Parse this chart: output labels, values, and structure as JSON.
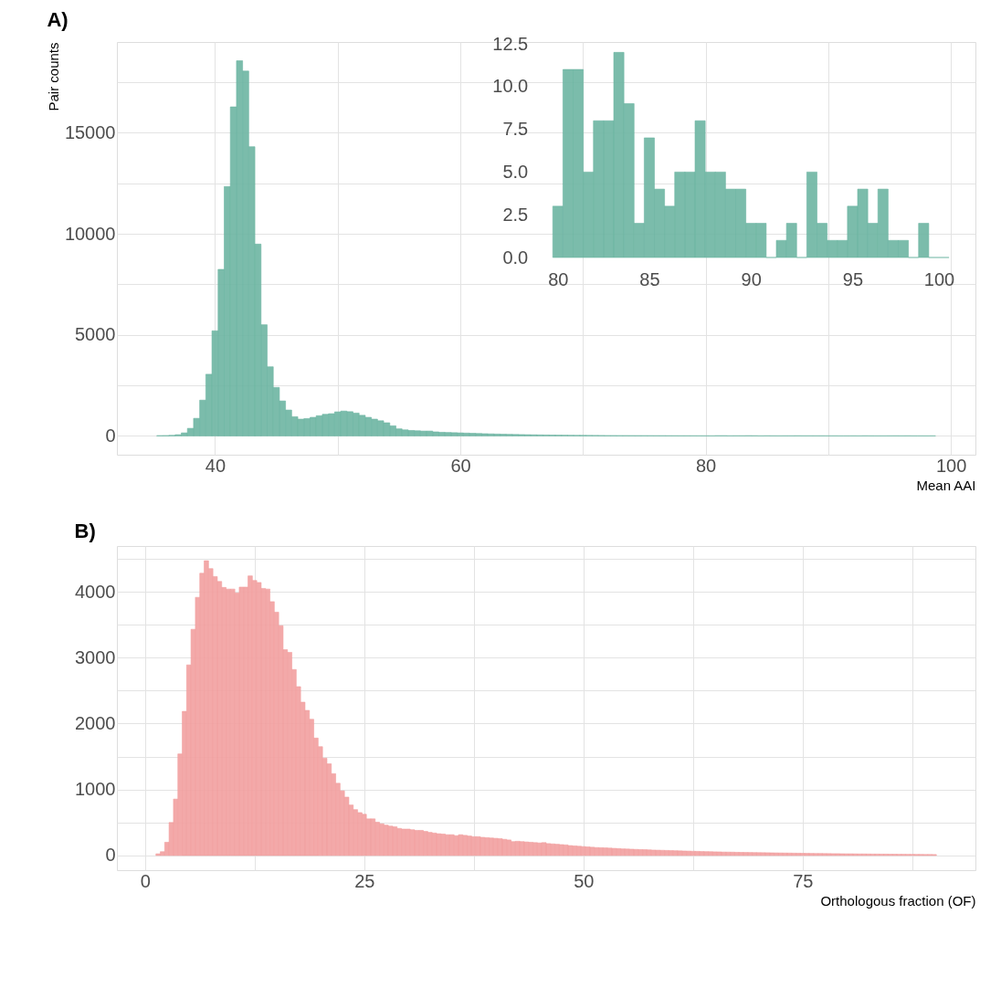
{
  "chart_data": [
    {
      "type": "histogram",
      "title": "A)",
      "xlabel": "Mean AAI",
      "ylabel": "Pair counts",
      "color": "#6db5a2",
      "grid": true,
      "xlim": [
        32,
        102
      ],
      "ylim": [
        -930,
        19490
      ],
      "xticks": [
        40,
        {
          "value": 50,
          "label": null
        },
        60,
        {
          "value": 70,
          "label": null
        },
        80,
        {
          "value": 90,
          "label": null
        },
        100
      ],
      "yticks": [
        0,
        {
          "value": 2500,
          "label": null
        },
        5000,
        {
          "value": 7500,
          "label": null
        },
        10000,
        {
          "value": 12500,
          "label": null
        },
        15000,
        {
          "value": 17500,
          "label": null
        }
      ],
      "bins": [
        35.25,
        35.75,
        36.25,
        36.75,
        37.25,
        37.75,
        38.25,
        38.75,
        39.25,
        39.75,
        40.25,
        40.75,
        41.25,
        41.75,
        42.25,
        42.75,
        43.25,
        43.75,
        44.25,
        44.75,
        45.25,
        45.75,
        46.25,
        46.75,
        47.25,
        47.75,
        48.25,
        48.75,
        49.25,
        49.75,
        50.25,
        50.75,
        51.25,
        51.75,
        52.25,
        52.75,
        53.25,
        53.75,
        54.25,
        54.75,
        55.25,
        55.75,
        56.25,
        56.75,
        57.25,
        57.75,
        58.25,
        58.75,
        59.25,
        59.75,
        60.25,
        60.75,
        61.25,
        61.75,
        62.25,
        62.75,
        63.25,
        63.75,
        64.25,
        64.75,
        65.25,
        65.75,
        66.25,
        66.75,
        67.25,
        67.75,
        68.25,
        68.75,
        69.25,
        69.75,
        70.25,
        70.75,
        71.25,
        71.75,
        72.25,
        72.75,
        73.25,
        73.75,
        74.25,
        74.75,
        75.25,
        75.75,
        76.25,
        76.75,
        77.25,
        77.75,
        78.25,
        78.75,
        79.25,
        79.75,
        80.25,
        80.75,
        81.25,
        81.75,
        82.25,
        82.75,
        83.25,
        83.75,
        84.25,
        84.75,
        85.25,
        85.75,
        86.25,
        86.75,
        87.25,
        87.75,
        88.25,
        88.75,
        89.25,
        89.75,
        90.25,
        90.75,
        91.25,
        91.75,
        92.25,
        92.75,
        93.25,
        93.75,
        94.25,
        94.75,
        95.25,
        95.75,
        96.25,
        96.75,
        97.25,
        97.75,
        98.25,
        98.75
      ],
      "values": [
        15,
        20,
        30,
        60,
        150,
        375,
        870,
        1770,
        3050,
        5200,
        8240,
        12340,
        16280,
        18560,
        18050,
        14310,
        9490,
        5500,
        3420,
        2400,
        1730,
        1280,
        950,
        830,
        860,
        920,
        1000,
        1070,
        1100,
        1190,
        1230,
        1200,
        1130,
        1020,
        920,
        830,
        750,
        650,
        500,
        350,
        300,
        270,
        255,
        240,
        240,
        200,
        180,
        170,
        160,
        150,
        140,
        130,
        120,
        110,
        100,
        92,
        85,
        78,
        72,
        66,
        60,
        55,
        50,
        46,
        42,
        39,
        36,
        33,
        30,
        28,
        26,
        24,
        22,
        20,
        19,
        18,
        17,
        16,
        15,
        14,
        13,
        12,
        11,
        10,
        9,
        8,
        8,
        7,
        6,
        5,
        3,
        11,
        11,
        5,
        8,
        8,
        12,
        9,
        2,
        7,
        4,
        3,
        5,
        5,
        8,
        5,
        5,
        4,
        4,
        2,
        2,
        0,
        1,
        2,
        0,
        5,
        2,
        1,
        1,
        3,
        4,
        2,
        4,
        1,
        1,
        0,
        2
      ]
    },
    {
      "type": "histogram",
      "color": "#6db5a2",
      "grid": false,
      "xlim": [
        80,
        100
      ],
      "ylim": [
        0,
        12.5
      ],
      "xticks": [
        80,
        85,
        90,
        95,
        100
      ],
      "yticks": [
        {
          "value": 0,
          "label": "0.0"
        },
        {
          "value": 2.5,
          "label": "2.5"
        },
        {
          "value": 5,
          "label": "5.0"
        },
        {
          "value": 7.5,
          "label": "7.5"
        },
        {
          "value": 10,
          "label": "10.0"
        },
        {
          "value": 12.5,
          "label": "12.5"
        }
      ],
      "bins": [
        80.25,
        80.75,
        81.25,
        81.75,
        82.25,
        82.75,
        83.25,
        83.75,
        84.25,
        84.75,
        85.25,
        85.75,
        86.25,
        86.75,
        87.25,
        87.75,
        88.25,
        88.75,
        89.25,
        89.75,
        90.25,
        90.75,
        91.25,
        91.75,
        92.25,
        92.75,
        93.25,
        93.75,
        94.25,
        94.75,
        95.25,
        95.75,
        96.25,
        96.75,
        97.25,
        97.75,
        98.25,
        98.75,
        99.25,
        99.75
      ],
      "values": [
        3,
        11,
        11,
        5,
        8,
        8,
        12,
        9,
        2,
        7,
        4,
        3,
        5,
        5,
        8,
        5,
        5,
        4,
        4,
        2,
        2,
        0,
        1,
        2,
        0,
        5,
        2,
        1,
        1,
        3,
        4,
        2,
        4,
        1,
        1,
        0,
        2,
        0,
        0
      ]
    },
    {
      "type": "histogram",
      "title": "B)",
      "xlabel": "Orthologous fraction (OF)",
      "color": "#f2a0a0",
      "grid": true,
      "xlim": [
        -3.2,
        94.7
      ],
      "ylim": [
        -223,
        4693
      ],
      "xticks": [
        0,
        {
          "value": 12.5,
          "label": null
        },
        25,
        {
          "value": 37.5,
          "label": null
        },
        50,
        {
          "value": 62.5,
          "label": null
        },
        75,
        {
          "value": 87.5,
          "label": null
        }
      ],
      "yticks": [
        0,
        {
          "value": 500,
          "label": null
        },
        1000,
        {
          "value": 1500,
          "label": null
        },
        2000,
        {
          "value": 2500,
          "label": null
        },
        3000,
        {
          "value": 3500,
          "label": null
        },
        4000,
        {
          "value": 4500,
          "label": null
        }
      ],
      "bins": [
        1.25,
        1.75,
        2.25,
        2.75,
        3.25,
        3.75,
        4.25,
        4.75,
        5.25,
        5.75,
        6.25,
        6.75,
        7.25,
        7.75,
        8.25,
        8.75,
        9.25,
        9.75,
        10.25,
        10.75,
        11.25,
        11.75,
        12.25,
        12.75,
        13.25,
        13.75,
        14.25,
        14.75,
        15.25,
        15.75,
        16.25,
        16.75,
        17.25,
        17.75,
        18.25,
        18.75,
        19.25,
        19.75,
        20.25,
        20.75,
        21.25,
        21.75,
        22.25,
        22.75,
        23.25,
        23.75,
        24.25,
        24.75,
        25.25,
        25.75,
        26.25,
        26.75,
        27.25,
        27.75,
        28.25,
        28.75,
        29.25,
        29.75,
        30.25,
        30.75,
        31.25,
        31.75,
        32.25,
        32.75,
        33.25,
        33.75,
        34.25,
        34.75,
        35.25,
        35.75,
        36.25,
        36.75,
        37.25,
        37.75,
        38.25,
        38.75,
        39.25,
        39.75,
        40.25,
        40.75,
        41.25,
        41.75,
        42.25,
        42.75,
        43.25,
        43.75,
        44.25,
        44.75,
        45.25,
        45.75,
        46.25,
        46.75,
        47.25,
        47.75,
        48.25,
        48.75,
        49.25,
        49.75,
        50.25,
        50.75,
        51.25,
        51.75,
        52.25,
        52.75,
        53.25,
        53.75,
        54.25,
        54.75,
        55.25,
        55.75,
        56.25,
        56.75,
        57.25,
        57.75,
        58.25,
        58.75,
        59.25,
        59.75,
        60.25,
        60.75,
        61.25,
        61.75,
        62.25,
        62.75,
        63.25,
        63.75,
        64.25,
        64.75,
        65.25,
        65.75,
        66.25,
        66.75,
        67.25,
        67.75,
        68.25,
        68.75,
        69.25,
        69.75,
        70.25,
        70.75,
        71.25,
        71.75,
        72.25,
        72.75,
        73.25,
        73.75,
        74.25,
        74.75,
        75.25,
        75.75,
        76.25,
        76.75,
        77.25,
        77.75,
        78.25,
        78.75,
        79.25,
        79.75,
        80.25,
        80.75,
        81.25,
        81.75,
        82.25,
        82.75,
        83.25,
        83.75,
        84.25,
        84.75,
        85.25,
        85.75,
        86.25,
        86.75,
        87.25,
        87.75,
        88.25,
        88.75,
        89.25,
        89.75,
        90.25
      ],
      "values": [
        25,
        57,
        200,
        500,
        855,
        1540,
        2185,
        2890,
        3430,
        3915,
        4280,
        4470,
        4350,
        4230,
        4155,
        4065,
        4040,
        4040,
        3980,
        4070,
        4070,
        4240,
        4170,
        4140,
        4050,
        4040,
        3850,
        3690,
        3485,
        3120,
        3080,
        2820,
        2560,
        2325,
        2200,
        2065,
        1780,
        1650,
        1475,
        1390,
        1240,
        1095,
        980,
        885,
        765,
        695,
        650,
        625,
        555,
        555,
        505,
        480,
        460,
        445,
        435,
        410,
        400,
        400,
        390,
        380,
        380,
        365,
        350,
        340,
        330,
        325,
        315,
        315,
        300,
        315,
        305,
        295,
        285,
        285,
        275,
        270,
        265,
        260,
        255,
        245,
        235,
        210,
        215,
        210,
        205,
        200,
        195,
        190,
        195,
        180,
        175,
        170,
        165,
        160,
        150,
        145,
        140,
        135,
        130,
        125,
        120,
        118,
        115,
        112,
        108,
        105,
        100,
        98,
        95,
        92,
        90,
        88,
        85,
        82,
        80,
        78,
        76,
        74,
        72,
        70,
        68,
        66,
        64,
        62,
        60,
        58,
        57,
        55,
        54,
        52,
        51,
        50,
        48,
        47,
        46,
        45,
        44,
        43,
        42,
        41,
        40,
        39,
        38,
        37,
        36,
        35,
        34,
        33,
        32,
        31,
        30,
        30,
        29,
        28,
        27,
        27,
        26,
        25,
        25,
        24,
        23,
        23,
        22,
        21,
        21,
        20,
        20,
        19,
        19,
        18,
        18,
        17,
        17,
        16,
        16,
        15,
        15,
        14
      ]
    }
  ]
}
